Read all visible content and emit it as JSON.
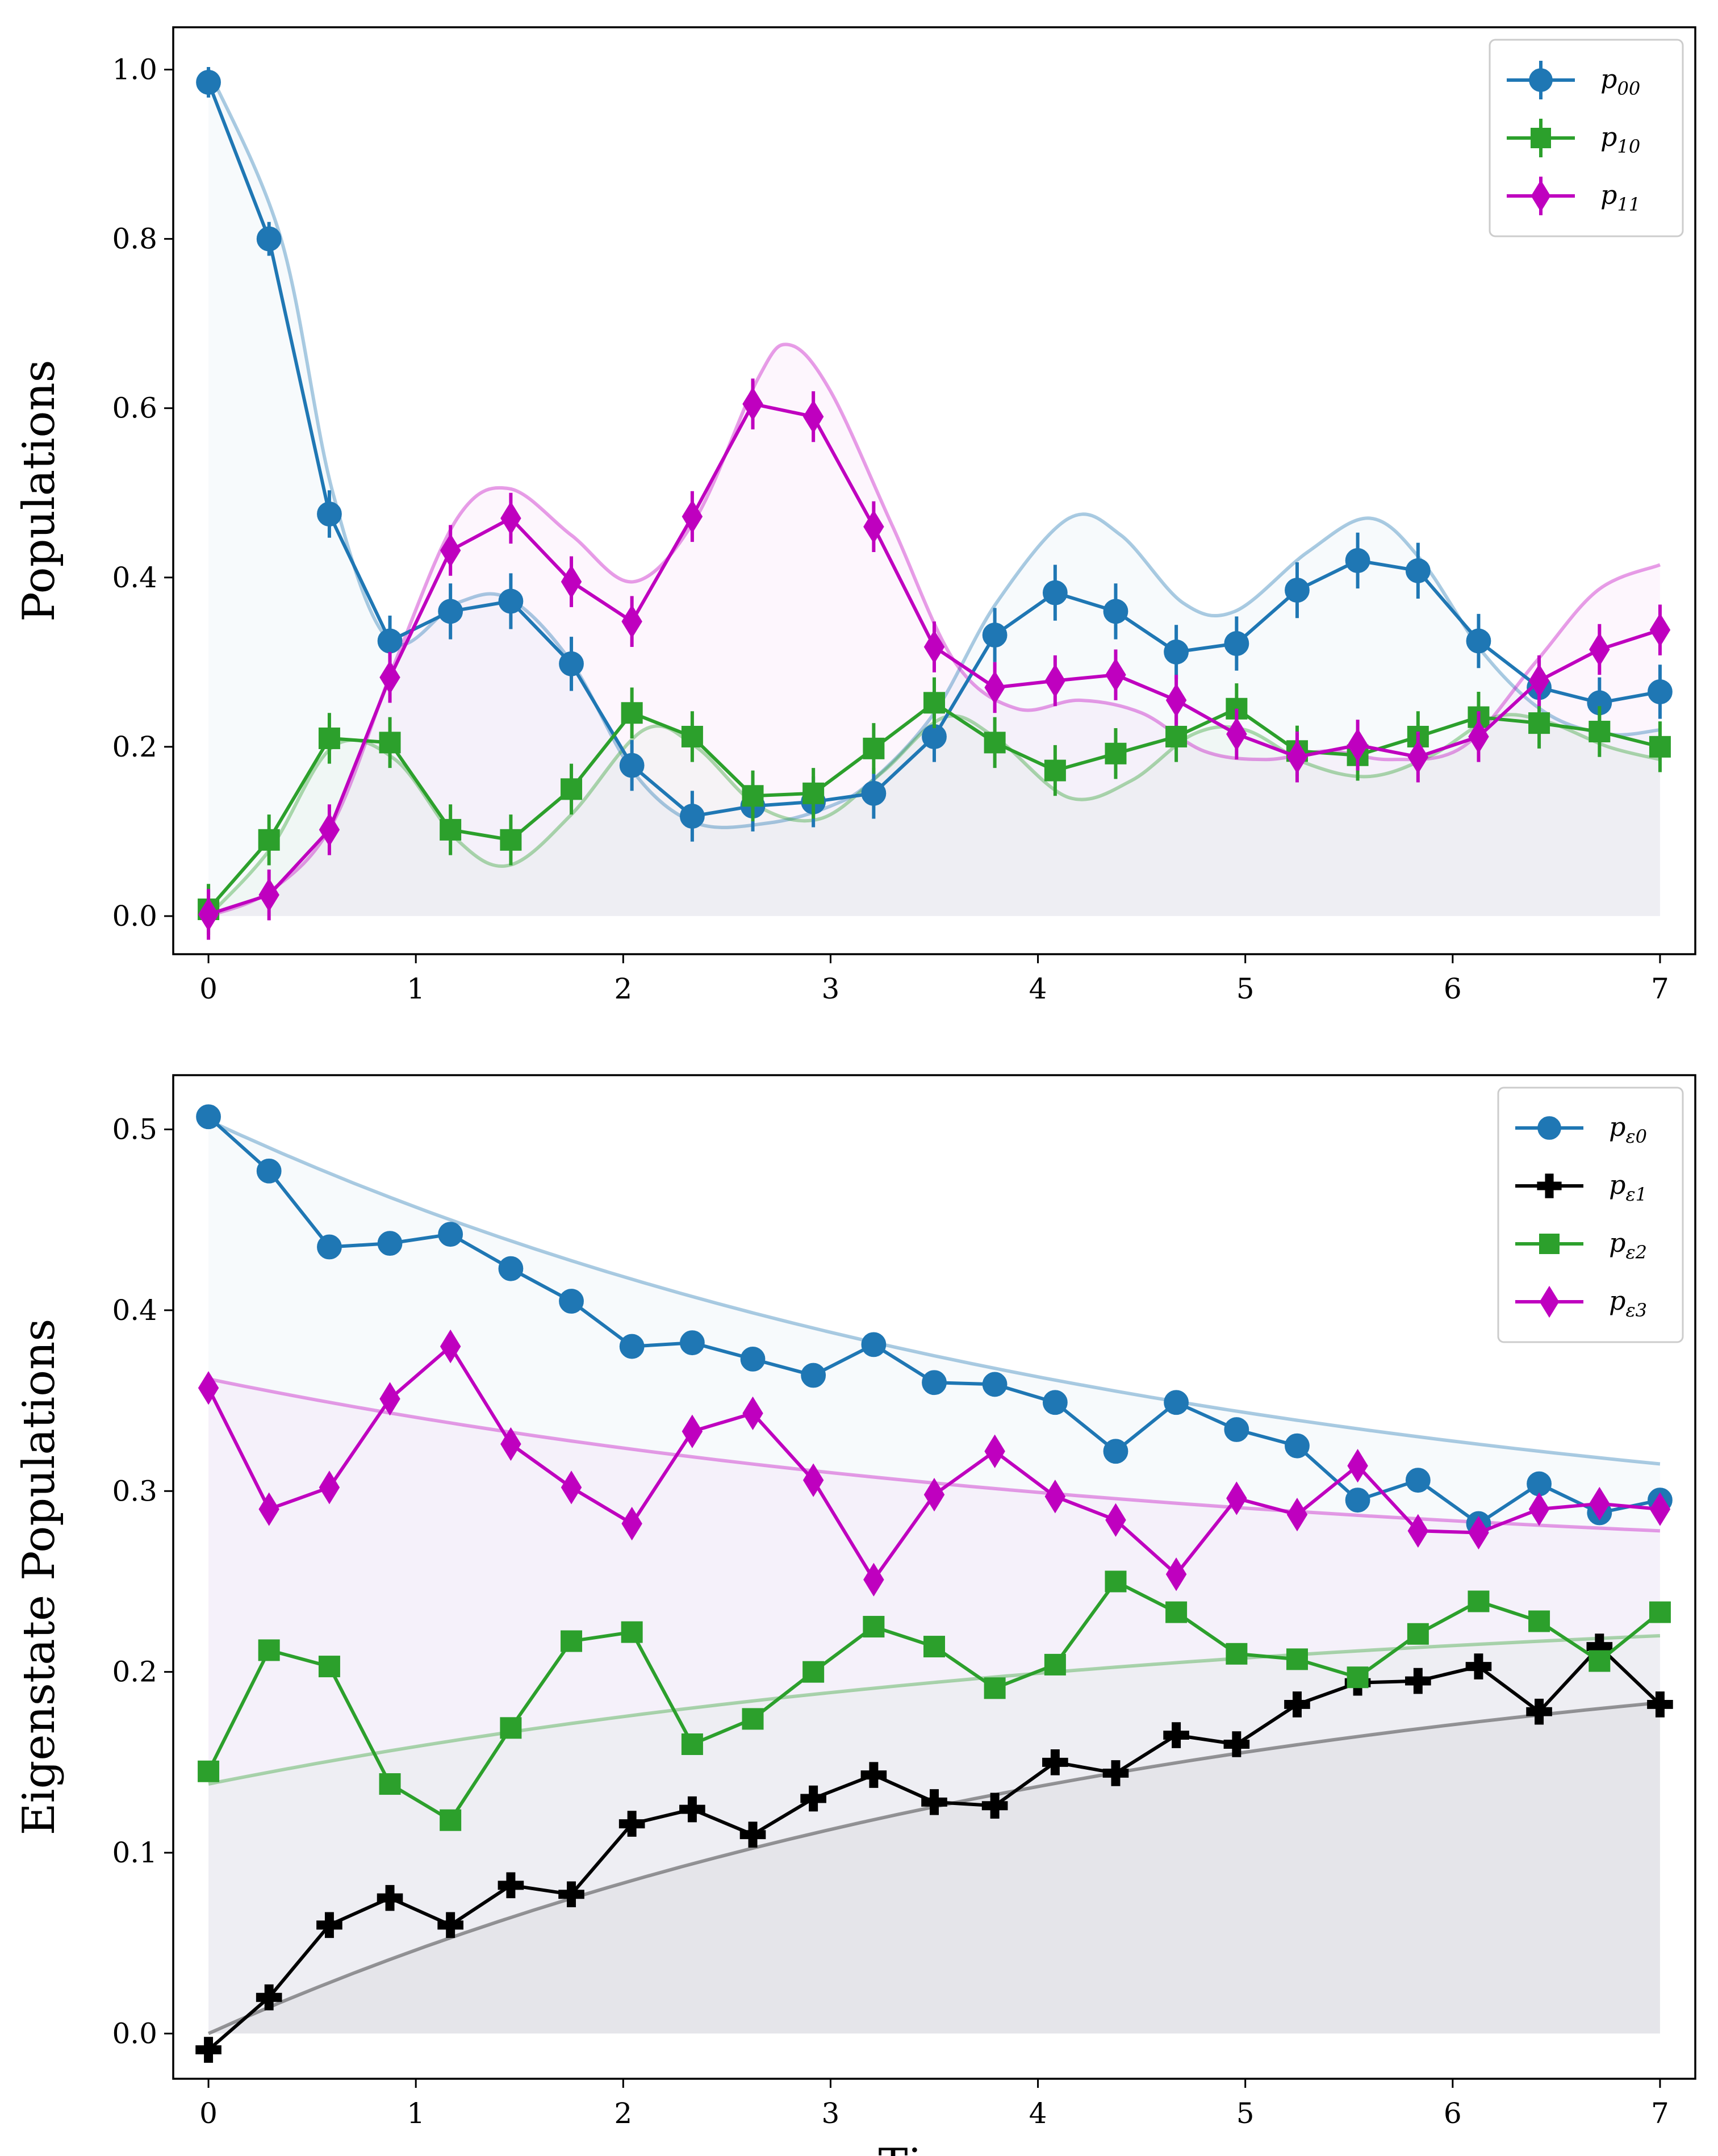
{
  "chart_data": [
    {
      "type": "line",
      "ylabel": "Populations",
      "xlabel": "",
      "xlim": [
        -0.17,
        7.17
      ],
      "ylim": [
        -0.045,
        1.05
      ],
      "x_ticks": [
        0,
        1,
        2,
        3,
        4,
        5,
        6,
        7
      ],
      "y_ticks": [
        "0.0",
        "0.2",
        "0.4",
        "0.6",
        "0.8",
        "1.0"
      ],
      "legend_position": "top-right",
      "x": [
        0,
        0.292,
        0.583,
        0.875,
        1.167,
        1.458,
        1.75,
        2.042,
        2.333,
        2.625,
        2.917,
        3.208,
        3.5,
        3.792,
        4.083,
        4.375,
        4.667,
        4.958,
        5.25,
        5.542,
        5.833,
        6.125,
        6.417,
        6.708,
        7.0
      ],
      "series": [
        {
          "name": "p",
          "sub": "00",
          "color": "#1f77b4",
          "marker": "circle",
          "values": [
            0.985,
            0.8,
            0.475,
            0.325,
            0.36,
            0.372,
            0.298,
            0.178,
            0.118,
            0.13,
            0.135,
            0.145,
            0.212,
            0.332,
            0.382,
            0.36,
            0.312,
            0.322,
            0.385,
            0.42,
            0.408,
            0.325,
            0.27,
            0.252,
            0.265
          ],
          "errors": [
            0.018,
            0.02,
            0.028,
            0.03,
            0.033,
            0.033,
            0.032,
            0.03,
            0.03,
            0.03,
            0.03,
            0.03,
            0.03,
            0.032,
            0.033,
            0.033,
            0.032,
            0.032,
            0.033,
            0.033,
            0.033,
            0.032,
            0.032,
            0.03,
            0.032
          ],
          "fit": [
            [
              0,
              1.0
            ],
            [
              0.35,
              0.8
            ],
            [
              0.6,
              0.5
            ],
            [
              0.875,
              0.325
            ],
            [
              1.2,
              0.37
            ],
            [
              1.45,
              0.375
            ],
            [
              1.75,
              0.3
            ],
            [
              2.05,
              0.17
            ],
            [
              2.35,
              0.11
            ],
            [
              2.7,
              0.11
            ],
            [
              3.0,
              0.13
            ],
            [
              3.2,
              0.16
            ],
            [
              3.5,
              0.24
            ],
            [
              3.8,
              0.37
            ],
            [
              4.15,
              0.47
            ],
            [
              4.4,
              0.45
            ],
            [
              4.7,
              0.37
            ],
            [
              4.95,
              0.36
            ],
            [
              5.3,
              0.43
            ],
            [
              5.6,
              0.47
            ],
            [
              5.85,
              0.42
            ],
            [
              6.15,
              0.31
            ],
            [
              6.45,
              0.24
            ],
            [
              6.75,
              0.215
            ],
            [
              7.0,
              0.22
            ]
          ]
        },
        {
          "name": "p",
          "sub": "10",
          "color": "#2ca02c",
          "marker": "square",
          "values": [
            0.008,
            0.09,
            0.21,
            0.205,
            0.102,
            0.09,
            0.15,
            0.24,
            0.212,
            0.142,
            0.145,
            0.198,
            0.252,
            0.205,
            0.172,
            0.192,
            0.212,
            0.245,
            0.195,
            0.19,
            0.212,
            0.235,
            0.228,
            0.218,
            0.2
          ],
          "errors": [
            0.03,
            0.03,
            0.03,
            0.03,
            0.03,
            0.03,
            0.03,
            0.03,
            0.03,
            0.03,
            0.03,
            0.03,
            0.03,
            0.03,
            0.03,
            0.03,
            0.03,
            0.03,
            0.03,
            0.03,
            0.03,
            0.03,
            0.03,
            0.03,
            0.03
          ],
          "fit": [
            [
              0,
              0.0
            ],
            [
              0.3,
              0.08
            ],
            [
              0.6,
              0.2
            ],
            [
              0.9,
              0.185
            ],
            [
              1.2,
              0.09
            ],
            [
              1.45,
              0.06
            ],
            [
              1.75,
              0.12
            ],
            [
              2.1,
              0.22
            ],
            [
              2.35,
              0.2
            ],
            [
              2.65,
              0.13
            ],
            [
              2.95,
              0.115
            ],
            [
              3.25,
              0.17
            ],
            [
              3.55,
              0.235
            ],
            [
              3.8,
              0.21
            ],
            [
              4.15,
              0.14
            ],
            [
              4.45,
              0.16
            ],
            [
              4.75,
              0.215
            ],
            [
              5.0,
              0.22
            ],
            [
              5.3,
              0.18
            ],
            [
              5.6,
              0.165
            ],
            [
              5.9,
              0.19
            ],
            [
              6.2,
              0.235
            ],
            [
              6.45,
              0.23
            ],
            [
              6.75,
              0.2
            ],
            [
              7.0,
              0.185
            ]
          ]
        },
        {
          "name": "p",
          "sub": "11",
          "color": "#bf00bf",
          "marker": "diamond",
          "values": [
            0.002,
            0.025,
            0.102,
            0.282,
            0.432,
            0.47,
            0.395,
            0.348,
            0.472,
            0.605,
            0.59,
            0.46,
            0.318,
            0.27,
            0.278,
            0.285,
            0.255,
            0.215,
            0.188,
            0.202,
            0.188,
            0.212,
            0.278,
            0.315,
            0.338
          ],
          "errors": [
            0.03,
            0.03,
            0.03,
            0.03,
            0.03,
            0.03,
            0.03,
            0.03,
            0.03,
            0.03,
            0.03,
            0.03,
            0.03,
            0.03,
            0.03,
            0.03,
            0.03,
            0.03,
            0.03,
            0.03,
            0.03,
            0.03,
            0.03,
            0.03,
            0.03
          ],
          "fit": [
            [
              0,
              0.0
            ],
            [
              0.3,
              0.03
            ],
            [
              0.6,
              0.11
            ],
            [
              0.9,
              0.3
            ],
            [
              1.2,
              0.47
            ],
            [
              1.45,
              0.505
            ],
            [
              1.75,
              0.45
            ],
            [
              2.05,
              0.395
            ],
            [
              2.35,
              0.47
            ],
            [
              2.65,
              0.635
            ],
            [
              2.8,
              0.675
            ],
            [
              3.0,
              0.62
            ],
            [
              3.3,
              0.46
            ],
            [
              3.6,
              0.3
            ],
            [
              3.9,
              0.245
            ],
            [
              4.2,
              0.255
            ],
            [
              4.5,
              0.24
            ],
            [
              4.8,
              0.195
            ],
            [
              5.1,
              0.185
            ],
            [
              5.4,
              0.195
            ],
            [
              5.7,
              0.185
            ],
            [
              6.05,
              0.2
            ],
            [
              6.4,
              0.3
            ],
            [
              6.7,
              0.385
            ],
            [
              7.0,
              0.415
            ]
          ]
        }
      ]
    },
    {
      "type": "line",
      "ylabel": "Eigenstate Populations",
      "xlabel": "Time",
      "xlim": [
        -0.17,
        7.17
      ],
      "ylim": [
        -0.025,
        0.53
      ],
      "x_ticks": [
        0,
        1,
        2,
        3,
        4,
        5,
        6,
        7
      ],
      "y_ticks": [
        "0.0",
        "0.1",
        "0.2",
        "0.3",
        "0.4",
        "0.5"
      ],
      "legend_position": "top-right",
      "x": [
        0,
        0.292,
        0.583,
        0.875,
        1.167,
        1.458,
        1.75,
        2.042,
        2.333,
        2.625,
        2.917,
        3.208,
        3.5,
        3.792,
        4.083,
        4.375,
        4.667,
        4.958,
        5.25,
        5.542,
        5.833,
        6.125,
        6.417,
        6.708,
        7.0
      ],
      "series": [
        {
          "name": "p",
          "sub": "ε0",
          "color": "#1f77b4",
          "marker": "circle",
          "values": [
            0.507,
            0.477,
            0.435,
            0.437,
            0.442,
            0.423,
            0.405,
            0.38,
            0.382,
            0.373,
            0.364,
            0.381,
            0.36,
            0.359,
            0.349,
            0.322,
            0.349,
            0.334,
            0.325,
            0.295,
            0.306,
            0.282,
            0.304,
            0.288,
            0.295
          ],
          "fit_start": 0.505,
          "fit_end": 0.315
        },
        {
          "name": "p",
          "sub": "ε1",
          "color": "#000000",
          "marker": "plus",
          "values": [
            -0.009,
            0.02,
            0.06,
            0.075,
            0.06,
            0.082,
            0.077,
            0.116,
            0.124,
            0.11,
            0.13,
            0.143,
            0.128,
            0.126,
            0.15,
            0.144,
            0.165,
            0.16,
            0.182,
            0.194,
            0.195,
            0.203,
            0.178,
            0.214,
            0.182
          ],
          "fit_start": 0.0,
          "fit_end": 0.183
        },
        {
          "name": "p",
          "sub": "ε2",
          "color": "#2ca02c",
          "marker": "square",
          "values": [
            0.145,
            0.212,
            0.203,
            0.138,
            0.118,
            0.169,
            0.217,
            0.222,
            0.16,
            0.174,
            0.2,
            0.225,
            0.214,
            0.191,
            0.204,
            0.25,
            0.233,
            0.21,
            0.207,
            0.197,
            0.221,
            0.239,
            0.228,
            0.206,
            0.233
          ],
          "fit_start": 0.138,
          "fit_end": 0.22
        },
        {
          "name": "p",
          "sub": "ε3",
          "color": "#bf00bf",
          "marker": "diamond",
          "values": [
            0.357,
            0.29,
            0.302,
            0.351,
            0.38,
            0.326,
            0.302,
            0.282,
            0.333,
            0.343,
            0.306,
            0.251,
            0.298,
            0.322,
            0.297,
            0.284,
            0.254,
            0.296,
            0.287,
            0.314,
            0.278,
            0.277,
            0.29,
            0.293,
            0.29
          ],
          "fit_start": 0.362,
          "fit_end": 0.278
        }
      ]
    }
  ]
}
